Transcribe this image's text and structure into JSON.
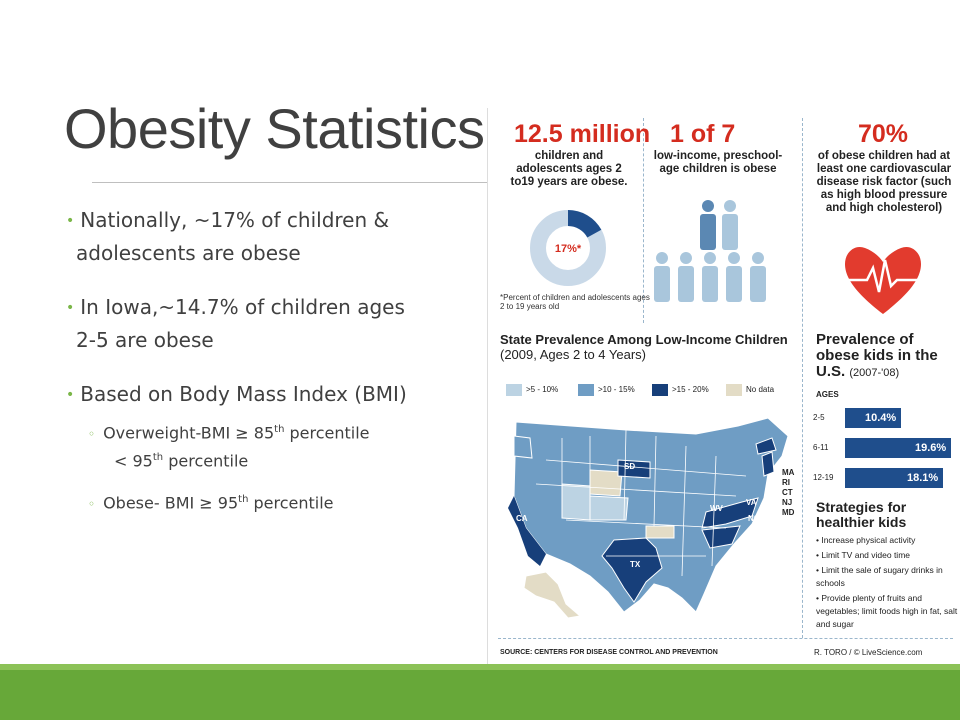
{
  "slide": {
    "title": "Obesity Statistics",
    "bullets": [
      {
        "line1": "Nationally, ~17% of children &",
        "line2": "adolescents are obese"
      },
      {
        "line1": "In Iowa,~14.7% of children ages",
        "line2": "2-5 are obese"
      },
      {
        "line1": "Based on Body Mass Index (BMI)"
      }
    ],
    "sub_bullets": [
      {
        "pre": "Overweight-BMI ≥ 85",
        "sup": "th",
        "post": " percentile",
        "line2_pre": "< 95",
        "line2_sup": "th",
        "line2_post": " percentile"
      },
      {
        "pre": "Obese- BMI ≥ 95",
        "sup": "th",
        "post": " percentile"
      }
    ],
    "sub_marker": "◦"
  },
  "infographic": {
    "panel1": {
      "big": "12.5 million",
      "text": "children and adolescents ages 2 to19 years are obese.",
      "donut_label": "17%*",
      "note": "*Percent of children and adolescents ages 2 to 19 years old"
    },
    "panel2": {
      "big": "1 of 7",
      "text": "low-income, preschool-age children is obese"
    },
    "panel3": {
      "big": "70%",
      "text": "of obese children had at least one cardiovascular disease risk factor (such as high blood pressure and high cholesterol)"
    },
    "map": {
      "title": "State Prevalence Among Low-Income Children",
      "subtitle": "(2009, Ages 2 to 4 Years)",
      "legend": [
        ">5 - 10%",
        ">10 - 15%",
        ">15 - 20%",
        "No data"
      ],
      "state_labels": [
        "SD",
        "CA",
        "TX",
        "WV",
        "VA",
        "NC"
      ],
      "ne_labels": [
        "MA",
        "RI",
        "CT",
        "NJ",
        "MD"
      ]
    },
    "prevalence": {
      "title": "Prevalence of obese kids in the U.S.",
      "subtitle": "(2007-'08)",
      "ages_label": "AGES",
      "chart_data": {
        "type": "bar",
        "categories": [
          "2-5",
          "6-11",
          "12-19"
        ],
        "values": [
          10.4,
          19.6,
          18.1
        ],
        "labels": [
          "10.4%",
          "19.6%",
          "18.1%"
        ]
      }
    },
    "strategies": {
      "title": "Strategies for healthier kids",
      "items": [
        "• Increase physical activity",
        "• Limit TV and video time",
        "• Limit the sale of sugary drinks in schools",
        "• Provide plenty of fruits and vegetables; limit foods high in fat, salt and sugar"
      ]
    },
    "source": "SOURCE: CENTERS FOR DISEASE CONTROL AND PREVENTION",
    "credit": "R. TORO / © LiveScience.com"
  },
  "colors": {
    "accent_green": "#67a839",
    "red": "#d42c1f",
    "navy": "#1f4e8c",
    "legend": [
      "#bcd3e3",
      "#6f9dc4",
      "#173f7a",
      "#e3dcc6"
    ]
  }
}
